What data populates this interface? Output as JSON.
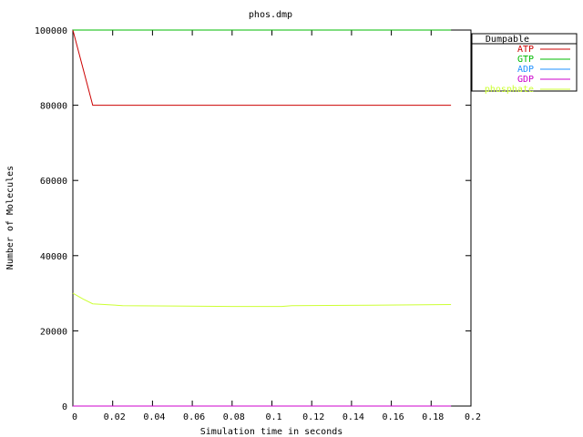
{
  "chart_data": {
    "type": "line",
    "title": "phos.dmp",
    "xlabel": "Simulation time in seconds",
    "ylabel": "Number of Molecules",
    "xlim": [
      0,
      0.2
    ],
    "ylim": [
      0,
      100000
    ],
    "x_ticks": [
      "0",
      "0.02",
      "0.04",
      "0.06",
      "0.08",
      "0.1",
      "0.12",
      "0.14",
      "0.16",
      "0.18",
      "0.2"
    ],
    "y_ticks": [
      "0",
      "20000",
      "40000",
      "60000",
      "80000",
      "100000"
    ],
    "grid": false,
    "legend": {
      "title": "Dumpable",
      "placement": "outside-right"
    },
    "series": [
      {
        "name": "ATP",
        "color": "#cc0000",
        "points": [
          [
            0,
            100000
          ],
          [
            0.01,
            80000
          ],
          [
            0.19,
            80000
          ]
        ]
      },
      {
        "name": "GTP",
        "color": "#00bb00",
        "points": [
          [
            0,
            100000
          ],
          [
            0.19,
            100000
          ]
        ]
      },
      {
        "name": "ADP",
        "color": "#1e90ff",
        "points": [
          [
            0,
            0
          ],
          [
            0.19,
            0
          ]
        ]
      },
      {
        "name": "GDP",
        "color": "#cc00cc",
        "points": [
          [
            0,
            0
          ],
          [
            0.19,
            0
          ]
        ]
      },
      {
        "name": "phosphate",
        "color": "#ccff33",
        "points": [
          [
            0,
            30000
          ],
          [
            0.005,
            28500
          ],
          [
            0.01,
            27200
          ],
          [
            0.025,
            26700
          ],
          [
            0.05,
            26600
          ],
          [
            0.08,
            26500
          ],
          [
            0.105,
            26500
          ],
          [
            0.11,
            26700
          ],
          [
            0.15,
            26800
          ],
          [
            0.19,
            27000
          ]
        ]
      }
    ]
  }
}
